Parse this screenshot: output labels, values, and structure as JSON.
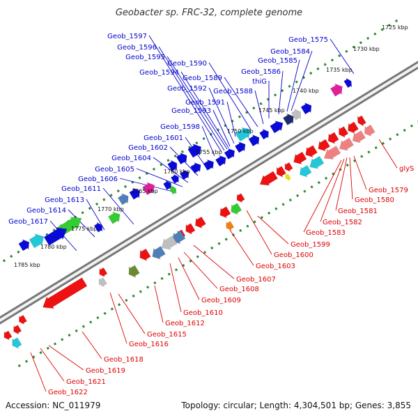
{
  "title": "Geobacter sp. FRC-32, complete genome",
  "footer": {
    "accession": "Accession: NC_011979",
    "topology": "Topology: circular; Length: 4,304,501 bp; Genes: 3,855"
  },
  "colors": {
    "forward_label": "#0000cc",
    "reverse_label": "#dd0000",
    "scale_dots": "#2e8b2e",
    "backbone": "#8c8c8c"
  },
  "scale_ticks": [
    "1725 kbp",
    "1730 kbp",
    "1735 kbp",
    "1740 kbp",
    "1745 kbp",
    "1750 kbp",
    "1755 kbp",
    "1760 kbp",
    "1765 kbp",
    "1770 kbp",
    "1775 kbp",
    "1780 kbp",
    "1785 kbp"
  ],
  "forward_labels": [
    "Geob_1575",
    "Geob_1584",
    "Geob_1585",
    "Geob_1586",
    "thiG",
    "Geob_1588",
    "Geob_1589",
    "Geob_1590",
    "Geob_1591",
    "Geob_1592",
    "Geob_1593",
    "Geob_1594",
    "Geob_1595",
    "Geob_1596",
    "Geob_1597",
    "Geob_1598",
    "Geob_1601",
    "Geob_1602",
    "Geob_1604",
    "Geob_1605",
    "Geob_1606",
    "Geob_1611",
    "Geob_1613",
    "Geob_1614",
    "Geob_1617"
  ],
  "reverse_labels": [
    "glyS",
    "Geob_1579",
    "Geob_1580",
    "Geob_1581",
    "Geob_1582",
    "Geob_1583",
    "Geob_1599",
    "Geob_1600",
    "Geob_1603",
    "Geob_1607",
    "Geob_1608",
    "Geob_1609",
    "Geob_1610",
    "Geob_1612",
    "Geob_1615",
    "Geob_1616",
    "Geob_1618",
    "Geob_1619",
    "Geob_1621",
    "Geob_1622"
  ]
}
